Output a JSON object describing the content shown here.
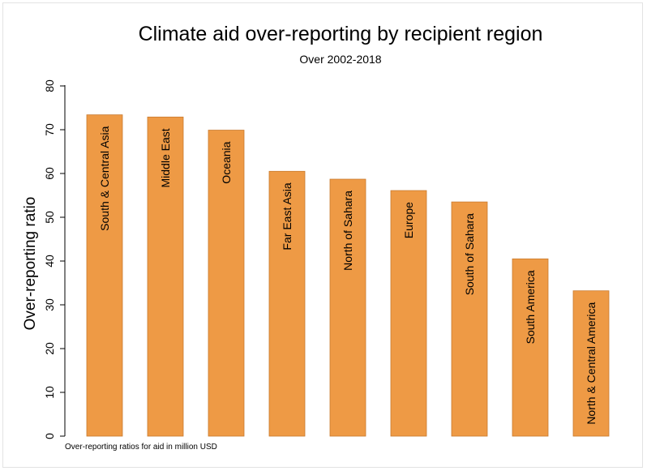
{
  "chart_data": {
    "type": "bar",
    "title": "Climate aid over-reporting by recipient region",
    "subtitle": "Over 2002-2018",
    "xlabel": "",
    "ylabel": "Over-reporting ratio",
    "note": "Over-reporting ratios for aid in million USD",
    "ylim": [
      0,
      80
    ],
    "yticks": [
      0,
      10,
      20,
      30,
      40,
      50,
      60,
      70,
      80
    ],
    "grid": false,
    "bar_color": "#EE9A45",
    "categories": [
      "South & Central Asia",
      "Middle East",
      "Oceania",
      "Far East Asia",
      "North of Sahara",
      "Europe",
      "South of Sahara",
      "South America",
      "North & Central America"
    ],
    "values": [
      73.4,
      72.9,
      69.9,
      60.5,
      58.7,
      56.1,
      53.5,
      40.5,
      33.2
    ]
  }
}
